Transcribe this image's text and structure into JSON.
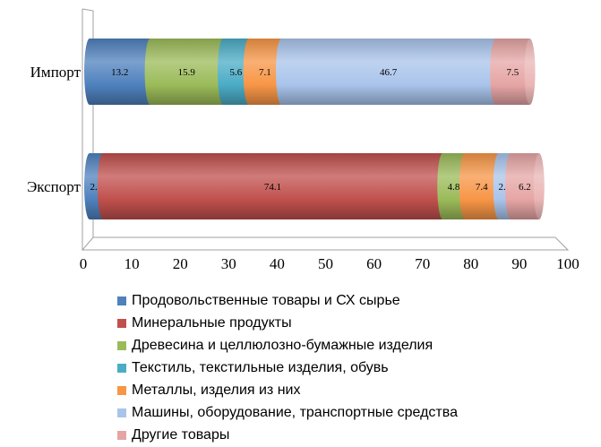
{
  "chart_data": {
    "type": "bar",
    "orientation": "horizontal",
    "stacked": true,
    "style": "3d-cylinder",
    "categories": [
      "Импорт",
      "Экспорт"
    ],
    "series": [
      {
        "name": "Продовольственные товары и СХ сырье",
        "color": "#4F81BD",
        "values": [
          13.2,
          2.9
        ]
      },
      {
        "name": "Минеральные продукты",
        "color": "#C0504D",
        "values": [
          0,
          74.1
        ]
      },
      {
        "name": "Древесина и целлюлозно-бумажные изделия",
        "color": "#9BBB59",
        "values": [
          15.9,
          4.8
        ]
      },
      {
        "name": "Текстиль, текстильные изделия, обувь",
        "color": "#4BACC6",
        "values": [
          5.6,
          0
        ]
      },
      {
        "name": "Металлы, изделия из них",
        "color": "#F79646",
        "values": [
          7.1,
          7.4
        ]
      },
      {
        "name": "Машины, оборудование, транспортные средства",
        "color": "#A9C4EB",
        "values": [
          46.7,
          2.6
        ]
      },
      {
        "name": "Другие товары",
        "color": "#E6A5A5",
        "values": [
          7.5,
          6.2
        ]
      }
    ],
    "xlim": [
      0,
      100
    ],
    "xticks": [
      "0",
      "10",
      "20",
      "30",
      "40",
      "50",
      "60",
      "70",
      "80",
      "90",
      "100"
    ],
    "grid": false,
    "legend_position": "bottom"
  }
}
